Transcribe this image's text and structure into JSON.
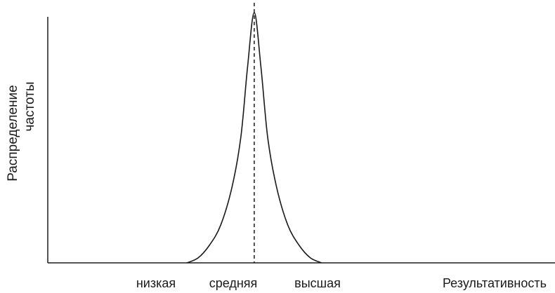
{
  "chart_data": {
    "type": "line",
    "title": "",
    "xlabel": "Результативность",
    "ylabel": [
      "Распределение",
      "частоты"
    ],
    "categories": [
      "низкая",
      "средняя",
      "высшая"
    ],
    "series": [
      {
        "x": [
          -1.5,
          -1.25,
          -1.0,
          -0.75,
          -0.5,
          -0.3,
          -0.15,
          0.0,
          0.15,
          0.3,
          0.5,
          0.75,
          1.0,
          1.25,
          1.5
        ],
        "values": [
          0.0,
          0.02,
          0.07,
          0.15,
          0.3,
          0.5,
          0.78,
          1.0,
          0.78,
          0.5,
          0.3,
          0.15,
          0.07,
          0.02,
          0.0
        ]
      }
    ],
    "reference_line": {
      "x": 0.0,
      "style": "dashed"
    },
    "xlim": [
      -4.6,
      6.7
    ],
    "ylim": [
      0,
      1.0
    ],
    "grid": false,
    "legend": "none"
  }
}
